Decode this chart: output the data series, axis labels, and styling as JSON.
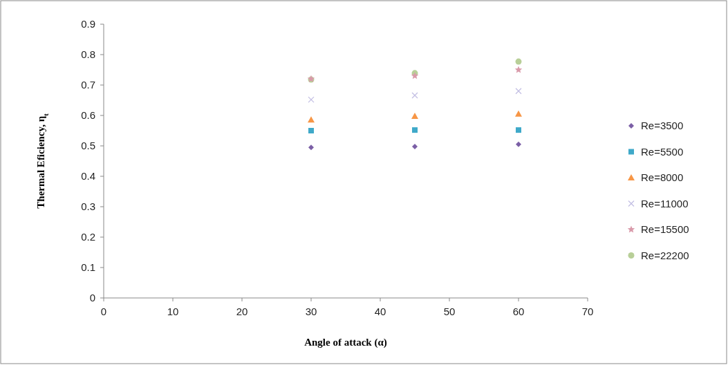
{
  "chart_data": {
    "type": "scatter",
    "xlabel": "Angle of attack (α)",
    "ylabel": "Thermal Eficiency, η$_{t}$",
    "x": [
      30,
      45,
      60
    ],
    "xlim": [
      0,
      70
    ],
    "xticks": [
      0,
      10,
      20,
      30,
      40,
      50,
      60,
      70
    ],
    "ylim": [
      0,
      0.9
    ],
    "yticks": [
      0,
      0.1,
      0.2,
      0.3,
      0.4,
      0.5,
      0.6,
      0.7,
      0.8,
      0.9
    ],
    "grid": false,
    "legend": "right",
    "series": [
      {
        "name": "Re=3500",
        "color": "#7b5fa6",
        "marker": "diamond",
        "values": [
          0.495,
          0.498,
          0.505
        ]
      },
      {
        "name": "Re=5500",
        "color": "#3fa9c9",
        "marker": "square",
        "values": [
          0.55,
          0.552,
          0.552
        ]
      },
      {
        "name": "Re=8000",
        "color": "#f79646",
        "marker": "triangle",
        "values": [
          0.586,
          0.598,
          0.605
        ]
      },
      {
        "name": "Re=11000",
        "color": "#c3bfe3",
        "marker": "cross",
        "values": [
          0.652,
          0.666,
          0.68
        ]
      },
      {
        "name": "Re=15500",
        "color": "#d99aaa",
        "marker": "star",
        "values": [
          0.72,
          0.73,
          0.75
        ]
      },
      {
        "name": "Re=22200",
        "color": "#b8cf98",
        "marker": "circle",
        "values": [
          0.718,
          0.739,
          0.777
        ]
      }
    ]
  }
}
